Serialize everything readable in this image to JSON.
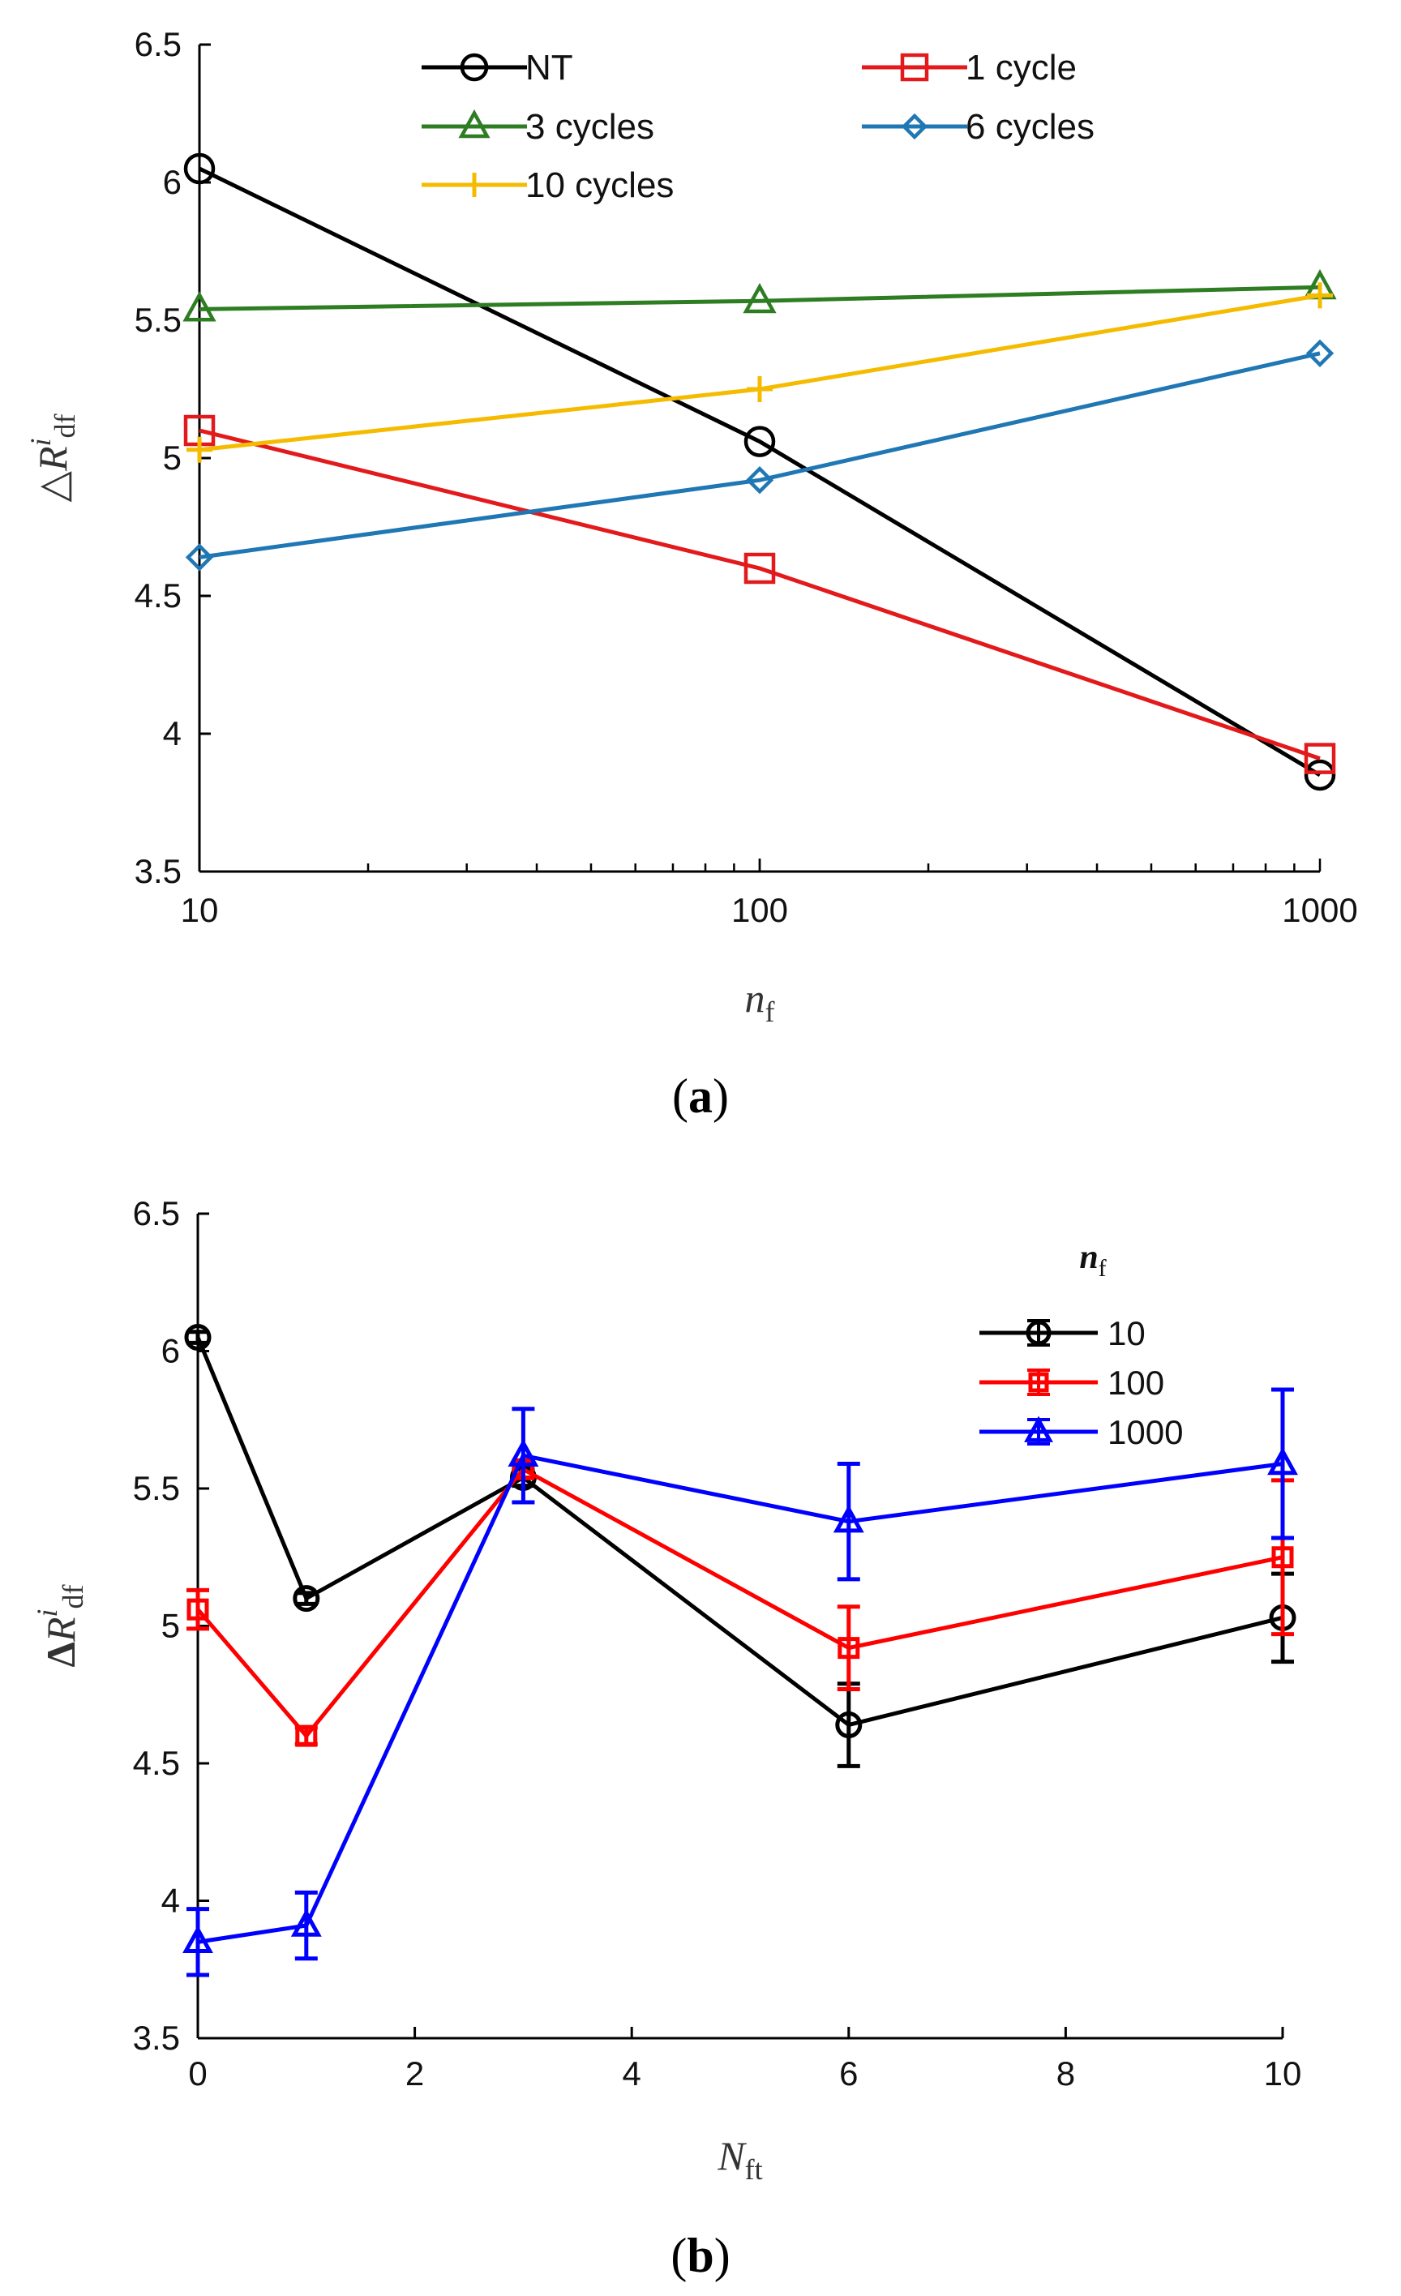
{
  "chart_data": [
    {
      "id": "a",
      "panel_label": "a",
      "type": "line",
      "xscale": "log",
      "xlim": [
        10,
        1000
      ],
      "ylim": [
        3.5,
        6.5
      ],
      "x": [
        10,
        100,
        1000
      ],
      "xticks": [
        "10",
        "100",
        "1000"
      ],
      "yticks": [
        "3.5",
        "4",
        "4.5",
        "5",
        "5.5",
        "6",
        "6.5"
      ],
      "ylabel": {
        "prefix": "△",
        "main": "R",
        "sup": "i",
        "sub": "df"
      },
      "xlabel": {
        "main": "n",
        "sub": "f"
      },
      "legend_position": "top",
      "series": [
        {
          "name": "NT",
          "color": "#000000",
          "marker": "circle",
          "values": [
            6.05,
            5.06,
            3.85
          ]
        },
        {
          "name": "1 cycle",
          "color": "#e31a1c",
          "marker": "square",
          "values": [
            5.1,
            4.6,
            3.91
          ]
        },
        {
          "name": "3 cycles",
          "color": "#2e7d23",
          "marker": "triangle",
          "values": [
            5.54,
            5.57,
            5.62
          ]
        },
        {
          "name": "6 cycles",
          "color": "#1f77b4",
          "marker": "diamond",
          "values": [
            4.64,
            4.92,
            5.38
          ]
        },
        {
          "name": "10 cycles",
          "color": "#f5bb00",
          "marker": "plus",
          "values": [
            5.03,
            5.25,
            5.59
          ]
        }
      ]
    },
    {
      "id": "b",
      "panel_label": "b",
      "type": "line",
      "xscale": "linear",
      "xlim": [
        0,
        10
      ],
      "ylim": [
        3.5,
        6.5
      ],
      "x": [
        0,
        1,
        3,
        6,
        10
      ],
      "xticks": [
        "0",
        "2",
        "4",
        "6",
        "8",
        "10"
      ],
      "xtick_values": [
        0,
        2,
        4,
        6,
        8,
        10
      ],
      "yticks": [
        "3.5",
        "4",
        "4.5",
        "5",
        "5.5",
        "6",
        "6.5"
      ],
      "ylabel": {
        "prefix": "Δ",
        "main": "R",
        "sup": "i",
        "sub": "df"
      },
      "xlabel": {
        "main": "N",
        "sub": "ft"
      },
      "legend_title": {
        "main": "n",
        "sub": "f"
      },
      "legend_position": "top-right",
      "series": [
        {
          "name": "10",
          "color": "#000000",
          "marker": "circle",
          "values": [
            6.05,
            5.1,
            5.54,
            4.64,
            5.03
          ],
          "errors": [
            0.02,
            0.02,
            0.03,
            0.15,
            0.16
          ]
        },
        {
          "name": "100",
          "color": "#ff0000",
          "marker": "square",
          "values": [
            5.06,
            4.6,
            5.57,
            4.92,
            5.25
          ],
          "errors": [
            0.07,
            0.03,
            0.03,
            0.15,
            0.28
          ]
        },
        {
          "name": "1000",
          "color": "#0000ff",
          "marker": "triangle",
          "values": [
            3.85,
            3.91,
            5.62,
            5.38,
            5.59
          ],
          "errors": [
            0.12,
            0.12,
            0.17,
            0.21,
            0.27
          ]
        }
      ]
    }
  ]
}
